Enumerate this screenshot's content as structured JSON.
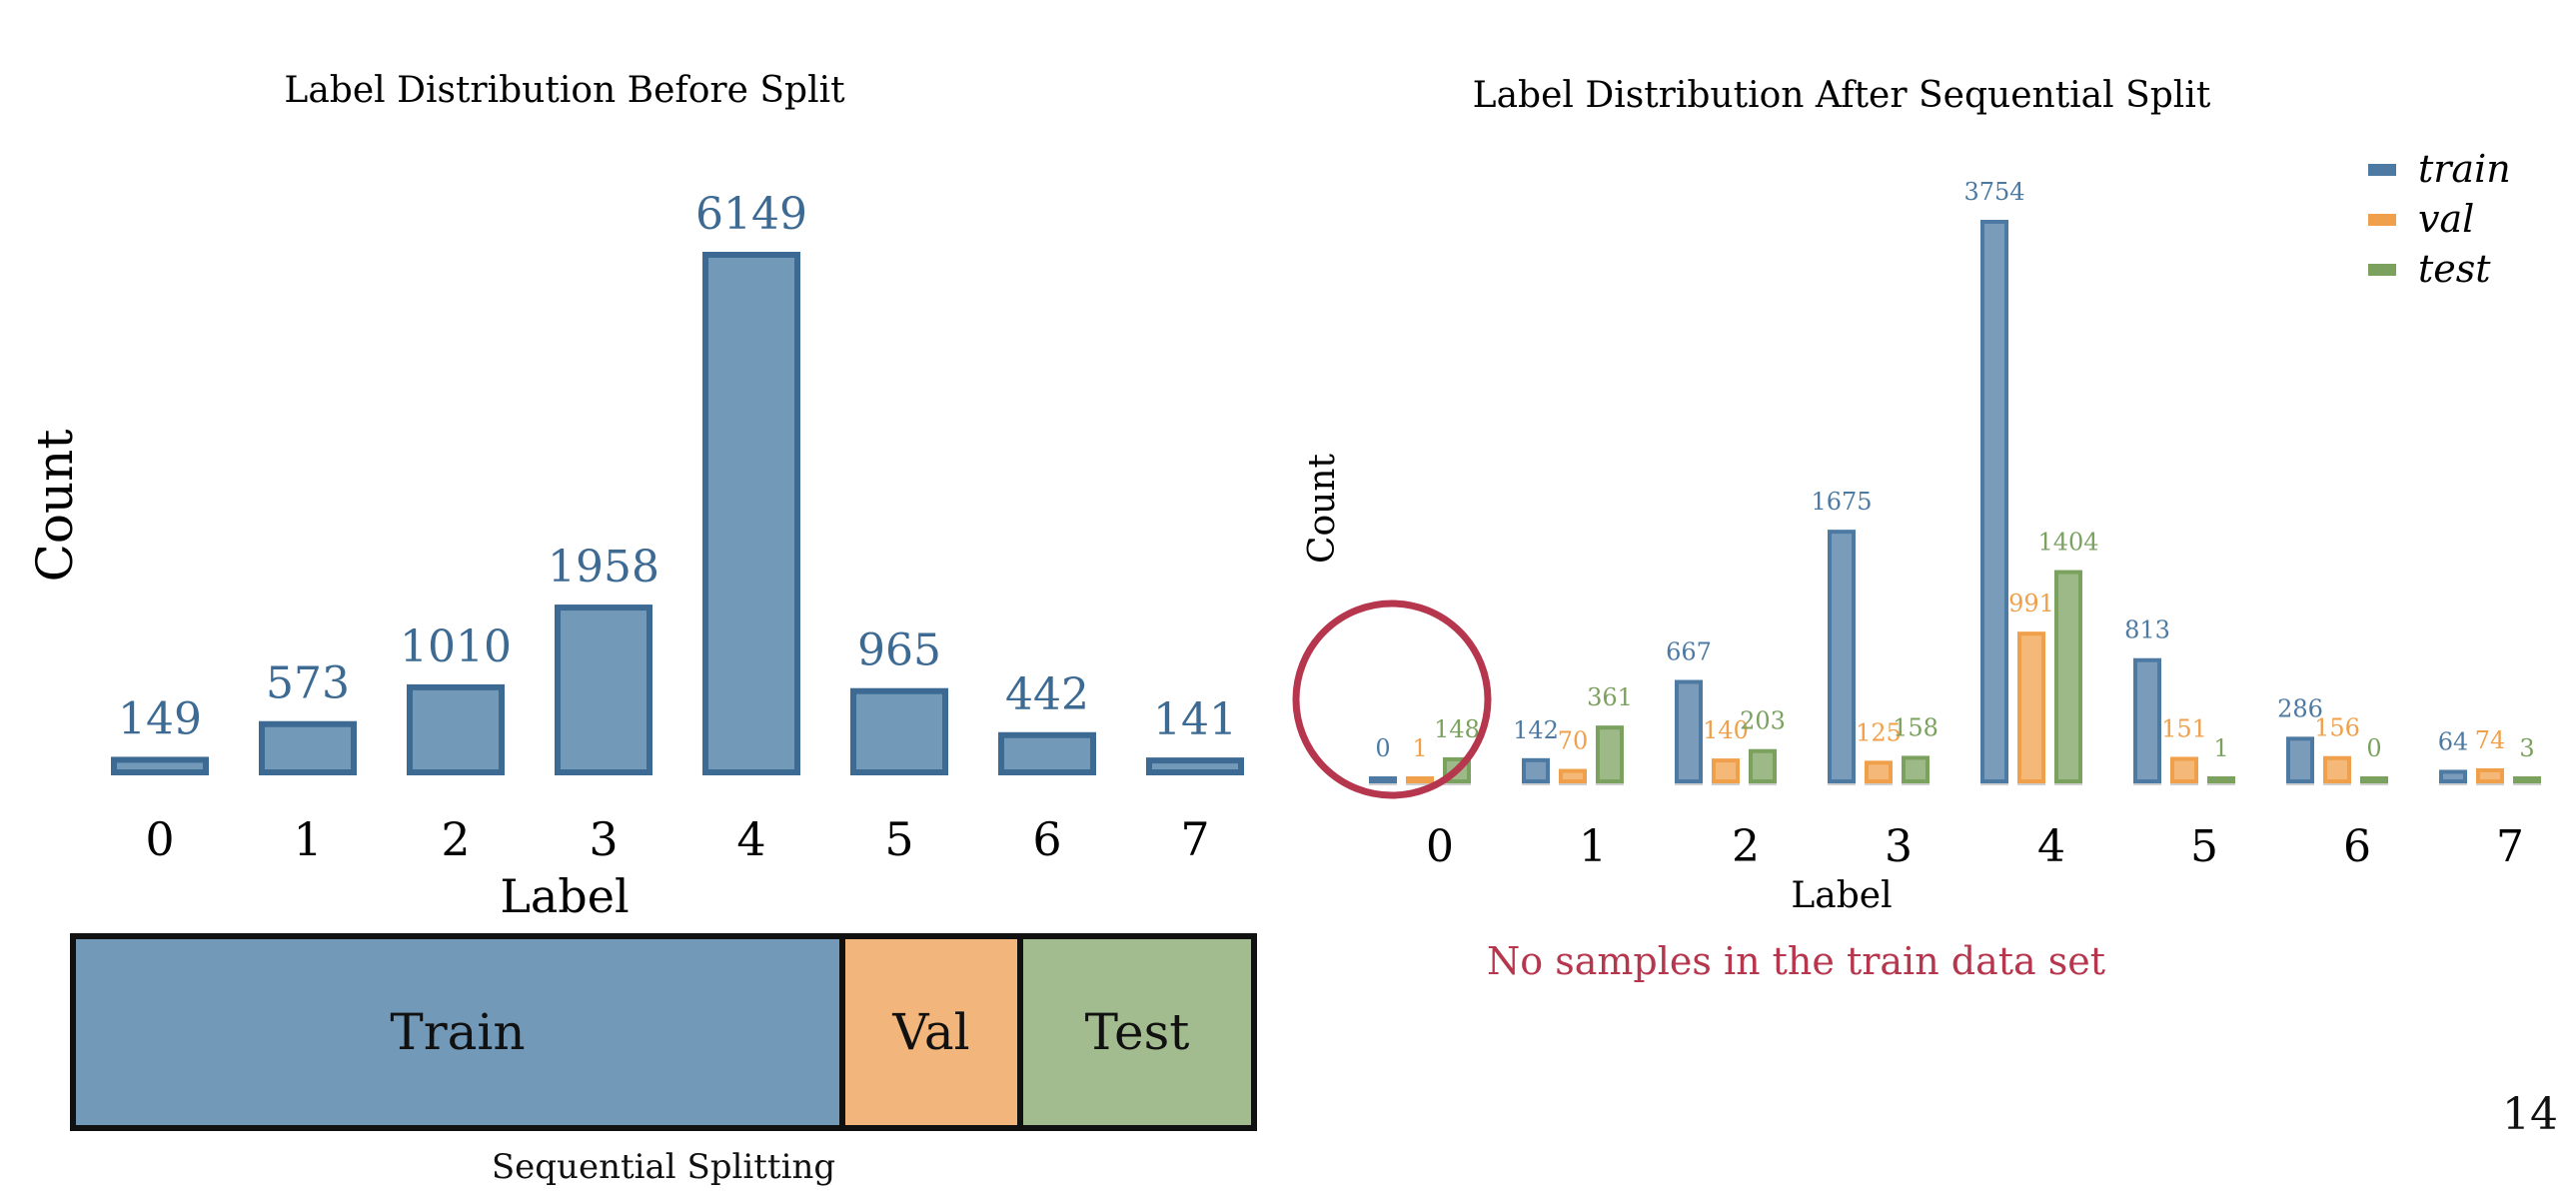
{
  "page": {
    "number": "14"
  },
  "split_bar": {
    "train_label": "Train",
    "val_label": "Val",
    "test_label": "Test",
    "caption": "Sequential Splitting"
  },
  "annotation": {
    "text": "No samples in the train data set",
    "color": "#b5364d"
  },
  "colors": {
    "train": "#4d7aa3",
    "val": "#f0a04b",
    "test": "#7ba15f",
    "before_fill": "#7399b8",
    "before_stroke": "#3d6a93",
    "label_blue": "#3d6a93",
    "highlight": "#b5364d"
  },
  "chart_data": [
    {
      "type": "bar",
      "title": "Label Distribution Before Split",
      "xlabel": "Label",
      "ylabel": "Count",
      "categories": [
        "0",
        "1",
        "2",
        "3",
        "4",
        "5",
        "6",
        "7"
      ],
      "values": [
        149,
        573,
        1010,
        1958,
        6149,
        965,
        442,
        141
      ],
      "ylim": [
        0,
        6149
      ],
      "grid": false
    },
    {
      "type": "bar",
      "title": "Label Distribution After Sequential Split",
      "xlabel": "Label",
      "ylabel": "Count",
      "categories": [
        "0",
        "1",
        "2",
        "3",
        "4",
        "5",
        "6",
        "7"
      ],
      "series": [
        {
          "name": "train",
          "values": [
            0,
            142,
            667,
            1675,
            3754,
            813,
            286,
            64
          ]
        },
        {
          "name": "val",
          "values": [
            1,
            70,
            140,
            125,
            991,
            151,
            156,
            74
          ]
        },
        {
          "name": "test",
          "values": [
            148,
            361,
            203,
            158,
            1404,
            1,
            0,
            3
          ]
        }
      ],
      "ylim": [
        0,
        3754
      ],
      "legend": "top-right",
      "grid": false
    }
  ]
}
